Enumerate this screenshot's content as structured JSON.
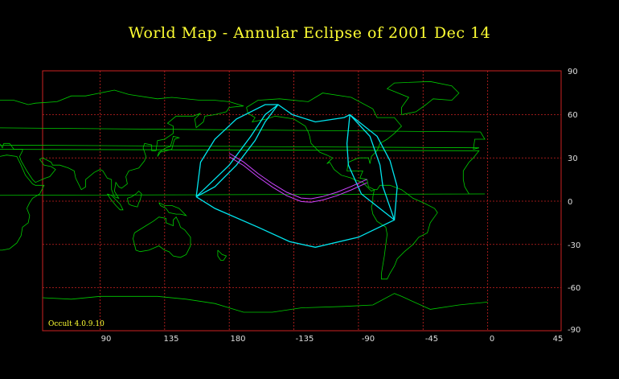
{
  "title": "World Map  -  Annular  Eclipse  of  2001 Dec 14",
  "credit": "Occult 4.0.9.10",
  "colors": {
    "background": "#000000",
    "grid": "#cc2222",
    "coast": "#00cc00",
    "limits": "#00e5ee",
    "central_path": "#cc44ff",
    "title": "#ffff33"
  },
  "axes": {
    "x_tick_labels": [
      "90",
      "135",
      "180",
      "-135",
      "-90",
      "-45",
      "0",
      "45"
    ],
    "y_tick_labels": [
      "90",
      "60",
      "30",
      "0",
      "-30",
      "-60",
      "-90"
    ],
    "projection": "equirectangular, centered on longitude 165",
    "lon_range": [
      50,
      280
    ],
    "lat_range": [
      -90,
      90
    ]
  },
  "eclipse": {
    "type": "Annular",
    "date": "2001 Dec 14",
    "central_line_lonlat": [
      [
        180,
        32
      ],
      [
        190,
        26
      ],
      [
        200,
        18
      ],
      [
        210,
        11
      ],
      [
        220,
        5
      ],
      [
        230,
        1
      ],
      [
        237,
        0.5
      ],
      [
        245,
        2
      ],
      [
        255,
        5
      ],
      [
        265,
        9
      ],
      [
        276,
        14
      ]
    ],
    "penumbra_outline_lonlat": [
      [
        157,
        3
      ],
      [
        160,
        27
      ],
      [
        170,
        43
      ],
      [
        185,
        57
      ],
      [
        205,
        67
      ],
      [
        214,
        67
      ],
      [
        224,
        60
      ],
      [
        240,
        55
      ],
      [
        260,
        58
      ],
      [
        264,
        60
      ],
      [
        283,
        45
      ],
      [
        292,
        28
      ],
      [
        297,
        10
      ],
      [
        295,
        -13
      ],
      [
        270,
        -25
      ],
      [
        240,
        -32
      ],
      [
        222,
        -28
      ],
      [
        200,
        -18
      ],
      [
        170,
        -5
      ],
      [
        157,
        3
      ]
    ],
    "limit_curves_lonlat": [
      [
        [
          157,
          3
        ],
        [
          180,
          25
        ],
        [
          195,
          45
        ],
        [
          205,
          60
        ],
        [
          214,
          67
        ]
      ],
      [
        [
          214,
          67
        ],
        [
          205,
          55
        ],
        [
          198,
          42
        ],
        [
          185,
          25
        ],
        [
          170,
          10
        ],
        [
          157,
          3
        ]
      ],
      [
        [
          264,
          60
        ],
        [
          262,
          40
        ],
        [
          263,
          25
        ],
        [
          272,
          5
        ],
        [
          295,
          -13
        ]
      ],
      [
        [
          264,
          60
        ],
        [
          278,
          45
        ],
        [
          285,
          25
        ],
        [
          287,
          10
        ],
        [
          295,
          -13
        ]
      ]
    ]
  }
}
